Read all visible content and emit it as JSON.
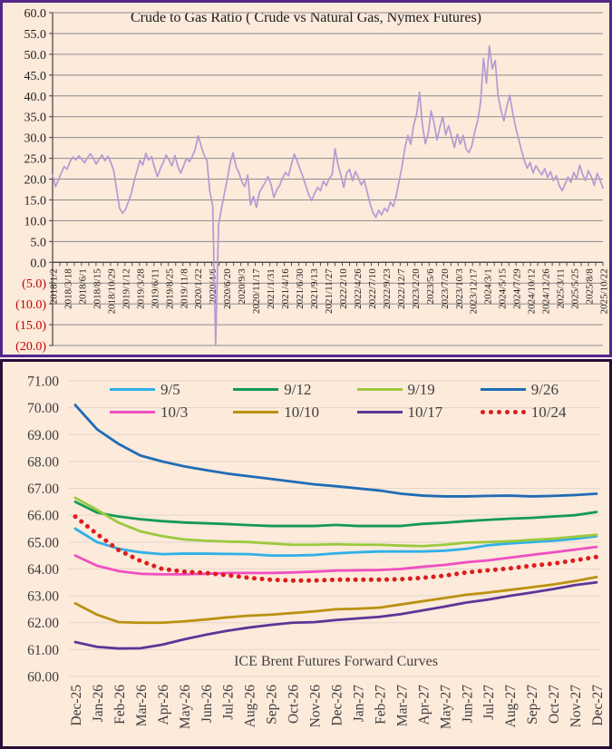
{
  "page": {
    "background": "#f5e2f1",
    "panel_background": "#fceadb"
  },
  "chart_data": [
    {
      "type": "line",
      "title": "Crude to Gas Ratio ( Crude vs Natural Gas, Nymex Futures)",
      "ylim": [
        -20,
        60
      ],
      "grid": true,
      "y_tick_values": [
        60,
        55,
        50,
        45,
        40,
        35,
        30,
        25,
        20,
        15,
        10,
        5,
        0,
        -5,
        -10,
        -15,
        -20
      ],
      "y_tick_labels": [
        "60.0",
        "55.0",
        "50.0",
        "45.0",
        "40.0",
        "35.0",
        "30.0",
        "25.0",
        "20.0",
        "15.0",
        "10.0",
        "5.0",
        "0.0",
        "(5.0)",
        "(10.0)",
        "(15.0)",
        "(20.0)"
      ],
      "negative_label_color": "#c00000",
      "axis_color": "#404040",
      "gridline_color": "#8c8c8c",
      "x_labels": [
        "2018/1/2",
        "2018/3/18",
        "2018/6/1",
        "2018/8/15",
        "2018/10/29",
        "2019/1/12",
        "2019/3/28",
        "2019/6/11",
        "2019/8/25",
        "2019/11/8",
        "2020/1/22",
        "2020/4/6",
        "2020/6/20",
        "2020/9/3",
        "2020/11/17",
        "2021/1/31",
        "2021/4/16",
        "2021/6/30",
        "2021/9/13",
        "2021/11/27",
        "2022/2/10",
        "2022/4/26",
        "2022/7/10",
        "2022/9/23",
        "2022/12/7",
        "2023/2/20",
        "2023/5/6",
        "2023/7/20",
        "2023/10/3",
        "2023/12/17",
        "2024/3/1",
        "2024/5/15",
        "2024/7/29",
        "2024/10/12",
        "2024/12/26",
        "2025/3/11",
        "2025/5/25",
        "2025/8/8",
        "2025/10/22"
      ],
      "series": [
        {
          "name": "Crude to Gas Ratio",
          "color": "#b49bd2",
          "style": "solid",
          "values": [
            21.0,
            18.2,
            19.8,
            21.5,
            23.0,
            22.4,
            24.2,
            25.3,
            24.6,
            25.6,
            24.8,
            23.9,
            25.2,
            26.1,
            25.0,
            23.6,
            24.8,
            25.8,
            24.4,
            25.5,
            24.0,
            22.0,
            17.5,
            13.0,
            11.8,
            12.6,
            14.5,
            16.5,
            19.5,
            22.0,
            24.5,
            23.4,
            26.2,
            24.6,
            25.4,
            22.8,
            20.6,
            22.5,
            24.0,
            25.8,
            24.6,
            23.2,
            25.7,
            23.0,
            21.4,
            23.2,
            25.0,
            24.2,
            25.5,
            27.2,
            30.4,
            28.0,
            25.8,
            24.5,
            17.0,
            13.5,
            -19.8,
            9.0,
            13.0,
            16.5,
            20.0,
            24.0,
            26.3,
            23.0,
            21.5,
            19.3,
            18.2,
            21.0,
            13.8,
            15.8,
            13.2,
            16.8,
            18.0,
            19.2,
            20.6,
            18.8,
            15.6,
            17.4,
            18.5,
            20.3,
            21.6,
            20.8,
            23.5,
            26.0,
            24.3,
            22.4,
            20.5,
            18.3,
            16.2,
            14.8,
            16.6,
            18.0,
            17.2,
            19.5,
            18.4,
            20.2,
            21.0,
            27.3,
            23.5,
            21.0,
            18.0,
            21.5,
            22.3,
            19.6,
            21.8,
            20.4,
            18.6,
            19.8,
            17.0,
            14.2,
            12.0,
            10.8,
            12.5,
            11.4,
            13.0,
            12.2,
            14.5,
            13.4,
            16.0,
            19.5,
            23.0,
            27.5,
            30.5,
            28.4,
            33.0,
            35.5,
            40.9,
            33.0,
            28.5,
            31.0,
            36.4,
            33.5,
            29.4,
            32.5,
            35.0,
            30.6,
            32.8,
            30.2,
            27.6,
            30.8,
            28.4,
            30.5,
            27.2,
            26.4,
            28.0,
            31.5,
            34.0,
            38.5,
            49.0,
            43.0,
            52.0,
            46.5,
            48.5,
            40.0,
            36.5,
            34.0,
            37.5,
            40.2,
            36.0,
            32.5,
            29.8,
            27.0,
            24.5,
            22.6,
            24.0,
            21.5,
            23.2,
            22.0,
            21.0,
            22.5,
            20.4,
            21.8,
            19.6,
            20.8,
            18.4,
            17.2,
            18.8,
            20.5,
            19.2,
            21.6,
            20.0,
            23.4,
            21.2,
            19.6,
            22.0,
            20.6,
            18.5,
            21.4,
            19.8,
            17.8
          ]
        }
      ]
    },
    {
      "type": "line",
      "title": "ICE Brent Futures Forward Curves",
      "ylim": [
        60,
        71
      ],
      "grid": true,
      "legend_position": "top",
      "gridline_color": "#e3d6c9",
      "y_tick_values": [
        71,
        70,
        69,
        68,
        67,
        66,
        65,
        64,
        63,
        62,
        61,
        60
      ],
      "y_tick_labels": [
        "71.00",
        "70.00",
        "69.00",
        "68.00",
        "67.00",
        "66.00",
        "65.00",
        "64.00",
        "63.00",
        "62.00",
        "61.00",
        "60.00"
      ],
      "categories": [
        "Dec-25",
        "Jan-26",
        "Feb-26",
        "Mar-26",
        "Apr-26",
        "May-26",
        "Jun-26",
        "Jul-26",
        "Aug-26",
        "Sep-26",
        "Oct-26",
        "Nov-26",
        "Dec-26",
        "Jan-27",
        "Feb-27",
        "Mar-27",
        "Apr-27",
        "May-27",
        "Jun-27",
        "Jul-27",
        "Aug-27",
        "Sep-27",
        "Oct-27",
        "Nov-27",
        "Dec-27"
      ],
      "series": [
        {
          "name": "9/5",
          "color": "#2fb0e8",
          "style": "solid",
          "values": [
            65.5,
            65.0,
            64.75,
            64.62,
            64.55,
            64.57,
            64.57,
            64.56,
            64.55,
            64.5,
            64.5,
            64.52,
            64.58,
            64.62,
            64.65,
            64.65,
            64.65,
            64.68,
            64.75,
            64.88,
            64.95,
            65.0,
            65.05,
            65.12,
            65.22
          ]
        },
        {
          "name": "9/12",
          "color": "#149a55",
          "style": "solid",
          "values": [
            66.5,
            66.1,
            65.95,
            65.85,
            65.78,
            65.73,
            65.7,
            65.67,
            65.63,
            65.6,
            65.6,
            65.6,
            65.64,
            65.6,
            65.6,
            65.6,
            65.68,
            65.72,
            65.78,
            65.83,
            65.87,
            65.9,
            65.95,
            66.0,
            66.12
          ]
        },
        {
          "name": "9/19",
          "color": "#9cc93f",
          "style": "solid",
          "values": [
            66.65,
            66.2,
            65.72,
            65.4,
            65.22,
            65.1,
            65.05,
            65.02,
            65.0,
            64.95,
            64.9,
            64.9,
            64.92,
            64.9,
            64.9,
            64.87,
            64.85,
            64.9,
            64.98,
            65.0,
            65.03,
            65.08,
            65.13,
            65.2,
            65.27
          ]
        },
        {
          "name": "9/26",
          "color": "#1f6cb5",
          "style": "solid",
          "values": [
            70.1,
            69.2,
            68.65,
            68.22,
            68.0,
            67.82,
            67.68,
            67.55,
            67.45,
            67.35,
            67.25,
            67.15,
            67.08,
            67.0,
            66.92,
            66.8,
            66.73,
            66.7,
            66.7,
            66.72,
            66.73,
            66.7,
            66.72,
            66.75,
            66.8
          ]
        },
        {
          "name": "10/3",
          "color": "#f04fc2",
          "style": "solid",
          "values": [
            64.5,
            64.12,
            63.92,
            63.82,
            63.8,
            63.8,
            63.82,
            63.85,
            63.85,
            63.85,
            63.87,
            63.9,
            63.94,
            63.95,
            63.96,
            64.0,
            64.08,
            64.15,
            64.25,
            64.32,
            64.42,
            64.52,
            64.62,
            64.72,
            64.82
          ]
        },
        {
          "name": "10/10",
          "color": "#bb9110",
          "style": "solid",
          "values": [
            62.72,
            62.3,
            62.02,
            62.0,
            62.0,
            62.05,
            62.12,
            62.2,
            62.26,
            62.3,
            62.36,
            62.42,
            62.5,
            62.52,
            62.56,
            62.68,
            62.8,
            62.92,
            63.04,
            63.12,
            63.22,
            63.32,
            63.42,
            63.55,
            63.7
          ]
        },
        {
          "name": "10/17",
          "color": "#5e3496",
          "style": "solid",
          "values": [
            61.28,
            61.1,
            61.04,
            61.05,
            61.18,
            61.38,
            61.55,
            61.7,
            61.82,
            61.92,
            62.0,
            62.02,
            62.1,
            62.16,
            62.22,
            62.32,
            62.46,
            62.6,
            62.75,
            62.86,
            63.0,
            63.12,
            63.25,
            63.4,
            63.5
          ]
        },
        {
          "name": "10/24",
          "color": "#dd1d1d",
          "style": "dotted",
          "values": [
            65.95,
            65.3,
            64.7,
            64.3,
            64.0,
            63.9,
            63.85,
            63.77,
            63.67,
            63.6,
            63.57,
            63.57,
            63.6,
            63.6,
            63.6,
            63.62,
            63.67,
            63.75,
            63.87,
            63.95,
            64.02,
            64.12,
            64.2,
            64.32,
            64.45
          ]
        }
      ]
    }
  ]
}
